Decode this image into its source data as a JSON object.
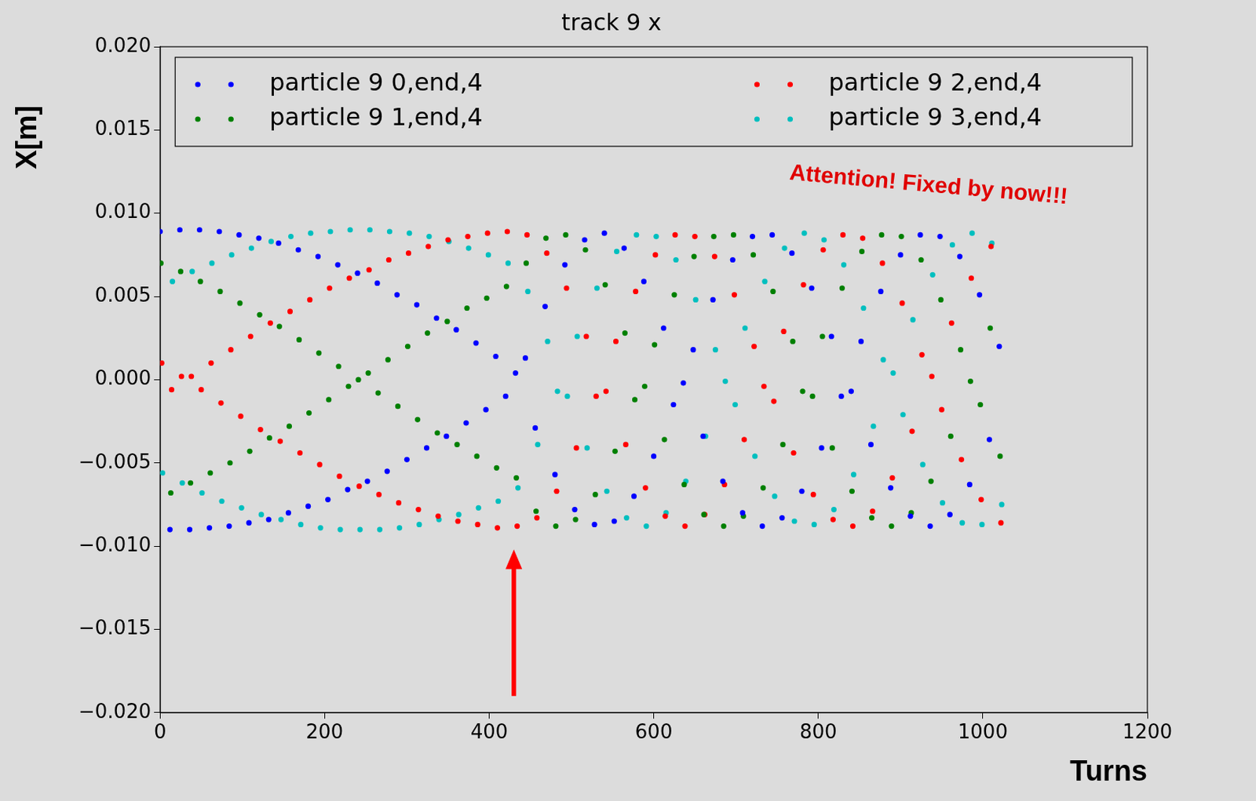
{
  "chart_data": {
    "type": "scatter",
    "title": "track 9 x",
    "x_label": "Turns",
    "y_label": "X[m]",
    "xlim": [
      0,
      1200
    ],
    "xticks": [
      0,
      200,
      400,
      600,
      800,
      1000,
      1200
    ],
    "ylim": [
      -0.02,
      0.02
    ],
    "yticks": [
      {
        "value": -0.02,
        "label": "−0.020"
      },
      {
        "value": -0.015,
        "label": "−0.015"
      },
      {
        "value": -0.01,
        "label": "−0.010"
      },
      {
        "value": -0.005,
        "label": "−0.005"
      },
      {
        "value": 0,
        "label": "0.000"
      },
      {
        "value": 0.005,
        "label": "0.005"
      },
      {
        "value": 0.01,
        "label": "0.010"
      },
      {
        "value": 0.015,
        "label": "0.015"
      },
      {
        "value": 0.02,
        "label": "0.020"
      }
    ],
    "grid": false,
    "legend": "top",
    "marker": "circle",
    "series": [
      {
        "name": "particle 9 0,end,4",
        "color": "#0000ff",
        "x": [
          0,
          12,
          24,
          36,
          48,
          60,
          72,
          84,
          96,
          108,
          120,
          132,
          144,
          156,
          168,
          180,
          192,
          204,
          216,
          228,
          240,
          252,
          264,
          276,
          288,
          300,
          312,
          324,
          336,
          348,
          360,
          372,
          384,
          396,
          408,
          420,
          432,
          444,
          456,
          468,
          480,
          492,
          504,
          516,
          528,
          540,
          552,
          564,
          576,
          588,
          600,
          612,
          624,
          636,
          648,
          660,
          672,
          684,
          696,
          708,
          720,
          732,
          744,
          756,
          768,
          780,
          792,
          804,
          816,
          828,
          840,
          852,
          864,
          876,
          888,
          900,
          912,
          924,
          936,
          948,
          960,
          972,
          984,
          996,
          1008,
          1020
        ],
        "values": [
          0.0089,
          -0.009,
          0.009,
          -0.009,
          0.009,
          -0.0089,
          0.0089,
          -0.0088,
          0.0087,
          -0.0086,
          0.0085,
          -0.0084,
          0.0082,
          -0.008,
          0.0078,
          -0.0076,
          0.0074,
          -0.0072,
          0.0069,
          -0.0066,
          0.0064,
          -0.0061,
          0.0058,
          -0.0055,
          0.0051,
          -0.0048,
          0.0045,
          -0.0041,
          0.0037,
          -0.0034,
          0.003,
          -0.0026,
          0.0022,
          -0.0018,
          0.0014,
          -0.001,
          0.0004,
          0.0013,
          -0.0029,
          0.0044,
          -0.0057,
          0.0069,
          -0.0078,
          0.0084,
          -0.0087,
          0.0088,
          -0.0085,
          0.0079,
          -0.007,
          0.0059,
          -0.0046,
          0.0031,
          -0.0015,
          -0.0002,
          0.0018,
          -0.0034,
          0.0048,
          -0.0061,
          0.0072,
          -0.008,
          0.0086,
          -0.0088,
          0.0087,
          -0.0083,
          0.0076,
          -0.0067,
          0.0055,
          -0.0041,
          0.0026,
          -0.001,
          -0.0007,
          0.0023,
          -0.0039,
          0.0053,
          -0.0065,
          0.0075,
          -0.0082,
          0.0087,
          -0.0088,
          0.0086,
          -0.0081,
          0.0074,
          -0.0063,
          0.0051,
          -0.0036,
          0.002
        ]
      },
      {
        "name": "particle 9 1,end,4",
        "color": "#008000",
        "x": [
          1,
          13,
          25,
          37,
          49,
          61,
          73,
          85,
          97,
          109,
          121,
          133,
          145,
          157,
          169,
          181,
          193,
          205,
          217,
          229,
          241,
          253,
          265,
          277,
          289,
          301,
          313,
          325,
          337,
          349,
          361,
          373,
          385,
          397,
          409,
          421,
          433,
          445,
          457,
          469,
          481,
          493,
          505,
          517,
          529,
          541,
          553,
          565,
          577,
          589,
          601,
          613,
          625,
          637,
          649,
          661,
          673,
          685,
          697,
          709,
          721,
          733,
          745,
          757,
          769,
          781,
          793,
          805,
          817,
          829,
          841,
          853,
          865,
          877,
          889,
          901,
          913,
          925,
          937,
          949,
          961,
          973,
          985,
          997,
          1009,
          1021
        ],
        "values": [
          0.007,
          -0.0068,
          0.0065,
          -0.0062,
          0.0059,
          -0.0056,
          0.0053,
          -0.005,
          0.0046,
          -0.0043,
          0.0039,
          -0.0035,
          0.0032,
          -0.0028,
          0.0024,
          -0.002,
          0.0016,
          -0.0012,
          0.0008,
          -0.0004,
          0,
          0.0004,
          -0.0008,
          0.0012,
          -0.0016,
          0.002,
          -0.0024,
          0.0028,
          -0.0032,
          0.0035,
          -0.0039,
          0.0043,
          -0.0046,
          0.0049,
          -0.0053,
          0.0056,
          -0.0059,
          0.007,
          -0.0079,
          0.0085,
          -0.0088,
          0.0087,
          -0.0084,
          0.0078,
          -0.0069,
          0.0057,
          -0.0043,
          0.0028,
          -0.0012,
          -0.0004,
          0.0021,
          -0.0036,
          0.0051,
          -0.0063,
          0.0074,
          -0.0081,
          0.0086,
          -0.0088,
          0.0087,
          -0.0082,
          0.0075,
          -0.0065,
          0.0053,
          -0.0039,
          0.0023,
          -0.0007,
          -0.001,
          0.0026,
          -0.0041,
          0.0055,
          -0.0067,
          0.0077,
          -0.0083,
          0.0087,
          -0.0088,
          0.0086,
          -0.008,
          0.0072,
          -0.0061,
          0.0048,
          -0.0034,
          0.0018,
          -0.0001,
          -0.0015,
          0.0031,
          -0.0046
        ]
      },
      {
        "name": "particle 9 2,end,4",
        "color": "#ff0000",
        "x": [
          2,
          14,
          26,
          38,
          50,
          62,
          74,
          86,
          98,
          110,
          122,
          134,
          146,
          158,
          170,
          182,
          194,
          206,
          218,
          230,
          242,
          254,
          266,
          278,
          290,
          302,
          314,
          326,
          338,
          350,
          362,
          374,
          386,
          398,
          410,
          422,
          434,
          446,
          458,
          470,
          482,
          494,
          506,
          518,
          530,
          542,
          554,
          566,
          578,
          590,
          602,
          614,
          626,
          638,
          650,
          662,
          674,
          686,
          698,
          710,
          722,
          734,
          746,
          758,
          770,
          782,
          794,
          806,
          818,
          830,
          842,
          854,
          866,
          878,
          890,
          902,
          914,
          926,
          938,
          950,
          962,
          974,
          986,
          998,
          1010,
          1022
        ],
        "values": [
          0.001,
          -0.0006,
          0.0002,
          0.0002,
          -0.0006,
          0.001,
          -0.0014,
          0.0018,
          -0.0022,
          0.0026,
          -0.003,
          0.0034,
          -0.0037,
          0.0041,
          -0.0044,
          0.0048,
          -0.0051,
          0.0055,
          -0.0058,
          0.0061,
          -0.0064,
          0.0066,
          -0.0069,
          0.0072,
          -0.0074,
          0.0076,
          -0.0078,
          0.008,
          -0.0082,
          0.0084,
          -0.0085,
          0.0086,
          -0.0087,
          0.0088,
          -0.0089,
          0.0089,
          -0.0088,
          0.0087,
          -0.0083,
          0.0076,
          -0.0067,
          0.0055,
          -0.0041,
          0.0026,
          -0.001,
          -0.0007,
          0.0023,
          -0.0039,
          0.0053,
          -0.0065,
          0.0075,
          -0.0082,
          0.0087,
          -0.0088,
          0.0086,
          -0.0081,
          0.0074,
          -0.0063,
          0.0051,
          -0.0036,
          0.002,
          -0.0004,
          -0.0013,
          0.0029,
          -0.0044,
          0.0057,
          -0.0069,
          0.0078,
          -0.0084,
          0.0087,
          -0.0088,
          0.0085,
          -0.0079,
          0.007,
          -0.0059,
          0.0046,
          -0.0031,
          0.0015,
          0.0002,
          -0.0018,
          0.0034,
          -0.0048,
          0.0061,
          -0.0072,
          0.008,
          -0.0086
        ]
      },
      {
        "name": "particle 9 3,end,4",
        "color": "#00bfbf",
        "x": [
          3,
          15,
          27,
          39,
          51,
          63,
          75,
          87,
          99,
          111,
          123,
          135,
          147,
          159,
          171,
          183,
          195,
          207,
          219,
          231,
          243,
          255,
          267,
          279,
          291,
          303,
          315,
          327,
          339,
          351,
          363,
          375,
          387,
          399,
          411,
          423,
          435,
          447,
          459,
          471,
          483,
          495,
          507,
          519,
          531,
          543,
          555,
          567,
          579,
          591,
          603,
          615,
          627,
          639,
          651,
          663,
          675,
          687,
          699,
          711,
          723,
          735,
          747,
          759,
          771,
          783,
          795,
          807,
          819,
          831,
          843,
          855,
          867,
          879,
          891,
          903,
          915,
          927,
          939,
          951,
          963,
          975,
          987,
          999,
          1011,
          1023
        ],
        "values": [
          -0.0056,
          0.0059,
          -0.0062,
          0.0065,
          -0.0068,
          0.007,
          -0.0073,
          0.0075,
          -0.0077,
          0.0079,
          -0.0081,
          0.0083,
          -0.0084,
          0.0086,
          -0.0087,
          0.0088,
          -0.0089,
          0.0089,
          -0.009,
          0.009,
          -0.009,
          0.009,
          -0.009,
          0.0089,
          -0.0089,
          0.0088,
          -0.0087,
          0.0086,
          -0.0084,
          0.0083,
          -0.0081,
          0.0079,
          -0.0077,
          0.0075,
          -0.0073,
          0.007,
          -0.0065,
          0.0053,
          -0.0039,
          0.0023,
          -0.0007,
          -0.001,
          0.0026,
          -0.0041,
          0.0055,
          -0.0067,
          0.0077,
          -0.0083,
          0.0087,
          -0.0088,
          0.0086,
          -0.008,
          0.0072,
          -0.0061,
          0.0048,
          -0.0034,
          0.0018,
          -0.0001,
          -0.0015,
          0.0031,
          -0.0046,
          0.0059,
          -0.007,
          0.0079,
          -0.0085,
          0.0088,
          -0.0087,
          0.0084,
          -0.0078,
          0.0069,
          -0.0057,
          0.0043,
          -0.0028,
          0.0012,
          0.0004,
          -0.0021,
          0.0036,
          -0.0051,
          0.0063,
          -0.0074,
          0.0081,
          -0.0086,
          0.0088,
          -0.0087,
          0.0082,
          -0.0075
        ]
      }
    ],
    "annotations": [
      {
        "text": "Attention! Fixed by now!!!",
        "color": "#e00000"
      },
      {
        "arrow": {
          "x": 430,
          "y_from": -0.019,
          "y_to": -0.0102
        },
        "color": "#ff0000"
      }
    ]
  }
}
